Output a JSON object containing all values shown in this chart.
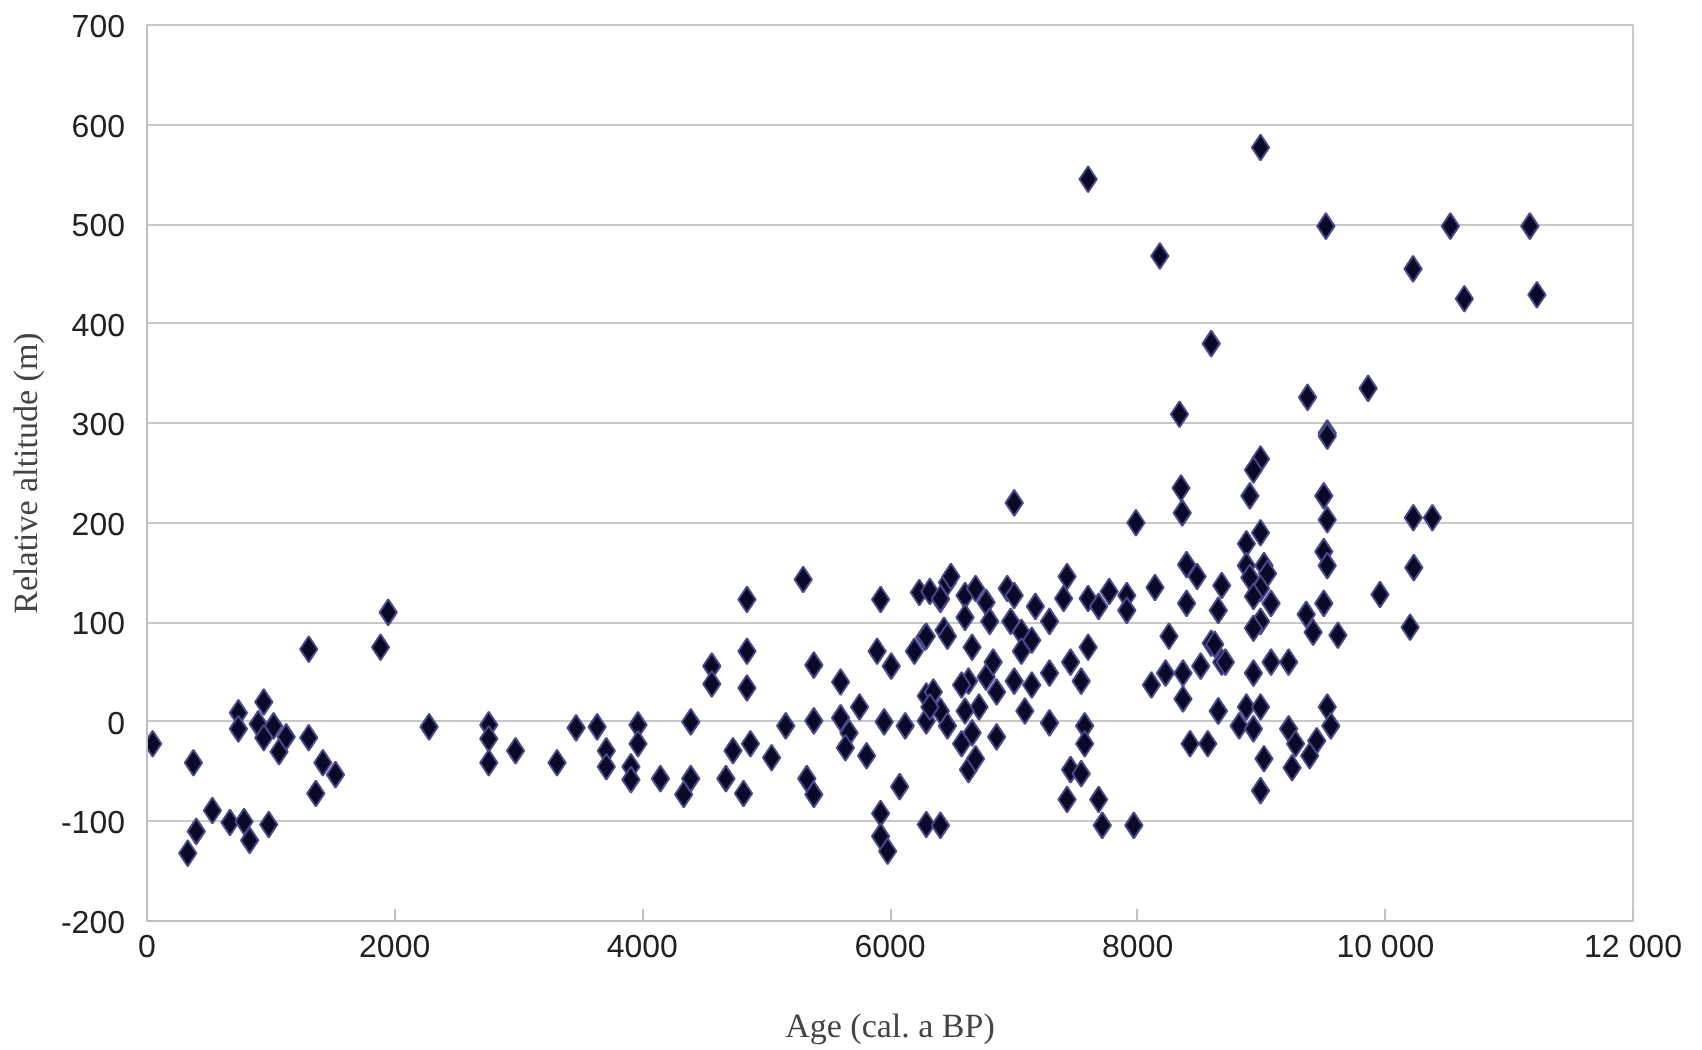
{
  "chart_data": {
    "type": "scatter",
    "xlabel": "Age (cal. a BP)",
    "ylabel": "Relative altitude (m)",
    "xlim": [
      0,
      12000
    ],
    "ylim": [
      -200,
      700
    ],
    "xticks": [
      0,
      2000,
      4000,
      6000,
      8000,
      {
        "value": 10000,
        "label": "10 000"
      },
      {
        "value": 12000,
        "label": "12 000"
      }
    ],
    "yticks": [
      -200,
      -100,
      0,
      100,
      200,
      300,
      400,
      500,
      600,
      700
    ],
    "grid": "y",
    "marker": "diamond",
    "series": [
      {
        "color": "#0a0a28",
        "x": [
          46,
          375,
          329,
          398,
          528,
          670,
          738,
          738,
          784,
          829,
          943,
          898,
          943,
          983,
          1022,
          1066,
          1124,
          1306,
          1306,
          1420,
          1363,
          1522,
          1886,
          1948,
          2278,
          2760,
          2760,
          2760,
          2976,
          3311,
          3465,
          3635,
          3709,
          3709,
          3965,
          3965,
          3908,
          3908,
          4146,
          4334,
          4391,
          4391,
          4561,
          4561,
          4675,
          4732,
          4845,
          4845,
          4845,
          4873,
          4817,
          5044,
          5299,
          5158,
          5385,
          5385,
          5328,
          5385,
          5601,
          5601,
          5669,
          5640,
          5811,
          5754,
          5924,
          5896,
          6010,
          5953,
          6078,
          5924,
          5924,
          5981,
          6123,
          6237,
          6282,
          6197,
          6436,
          6464,
          6407,
          6293,
          6293,
          6407,
          6293,
          6407,
          8338,
          8350,
          8360,
          7003,
          7986,
          6322,
          6492,
          6407,
          6606,
          6691,
          6776,
          6947,
          7003,
          6606,
          6805,
          6293,
          6464,
          7174,
          7288,
          7430,
          7402,
          6975,
          7061,
          7145,
          7061,
          6663,
          6634,
          6776,
          6833,
          6861,
          6719,
          6578,
          6350,
          6322,
          6464,
          6606,
          6663,
          6578,
          6634,
          6691,
          6861,
          7003,
          7145,
          7288,
          7458,
          7544,
          7089,
          7288,
          7572,
          7572,
          7458,
          7544,
          7430,
          7685,
          7714,
          7969,
          7600,
          7685,
          7770,
          7912,
          7912,
          8140,
          7600,
          8253,
          8395,
          8480,
          8395,
          8111,
          8225,
          8366,
          8594,
          8509,
          8679,
          8423,
          8566,
          8651,
          8820,
          8992,
          8179,
          9520,
          10525,
          11167,
          10224,
          10638,
          11224,
          8594,
          9372,
          9861,
          9531,
          7600,
          9531,
          8992,
          8935,
          8906,
          9503,
          9531,
          8992,
          8878,
          9503,
          9531,
          9020,
          8878,
          8679,
          8906,
          9049,
          8992,
          8935,
          8651,
          9077,
          9361,
          9503,
          9417,
          9617,
          8992,
          8935,
          8622,
          8708,
          8366,
          8935,
          9077,
          9219,
          8651,
          8878,
          8992,
          8935,
          9020,
          9219,
          9275,
          9446,
          9389,
          9531,
          9560,
          9247,
          8992,
          9957,
          10226,
          10230,
          10200,
          10380
        ],
        "values": [
          -22,
          -41,
          -132,
          -110,
          -89,
          -101,
          9,
          -7,
          -100,
          -119,
          20,
          -2,
          -16,
          -103,
          -4,
          -30,
          -15,
          73,
          -16,
          -41,
          -72,
          -53,
          75,
          110,
          -5,
          -3,
          -17,
          -41,
          -29,
          -41,
          -6,
          -5,
          -29,
          -45,
          -3,
          -22,
          -45,
          -58,
          -57,
          -73,
          -57,
          0,
          56,
          38,
          -57,
          -29,
          123,
          71,
          34,
          -22,
          -72,
          -36,
          143,
          -4,
          57,
          1,
          -57,
          -73,
          40,
          4,
          -11,
          -26,
          -34,
          15,
          123,
          71,
          56,
          0,
          -65,
          -92,
          -115,
          -130,
          -4,
          130,
          85,
          71,
          92,
          140,
          123,
          26,
          1,
          11,
          -103,
          -104,
          309,
          235,
          210,
          220,
          200,
          131,
          146,
          124,
          127,
          134,
          120,
          134,
          127,
          105,
          101,
          86,
          86,
          116,
          101,
          146,
          124,
          101,
          90,
          82,
          71,
          75,
          41,
          45,
          60,
          30,
          15,
          37,
          30,
          15,
          -4,
          11,
          -11,
          -22,
          -48,
          -37,
          -15,
          41,
          37,
          49,
          60,
          41,
          11,
          -1,
          -4,
          -22,
          -48,
          -52,
          -78,
          -78,
          -104,
          -104,
          124,
          116,
          131,
          127,
          112,
          135,
          75,
          86,
          119,
          146,
          158,
          37,
          49,
          23,
          79,
          56,
          60,
          -22,
          -22,
          11,
          -4,
          577,
          468,
          498,
          498,
          498,
          455,
          425,
          429,
          380,
          326,
          335,
          290,
          545,
          287,
          264,
          253,
          227,
          227,
          203,
          190,
          179,
          171,
          157,
          157,
          157,
          137,
          145,
          149,
          134,
          126,
          112,
          119,
          108,
          119,
          90,
          87,
          101,
          94,
          78,
          60,
          49,
          49,
          60,
          60,
          11,
          15,
          15,
          -7,
          -37,
          -7,
          -22,
          -19,
          -34,
          15,
          -4,
          -46,
          -69,
          128,
          205,
          155,
          95,
          205
        ]
      }
    ]
  }
}
